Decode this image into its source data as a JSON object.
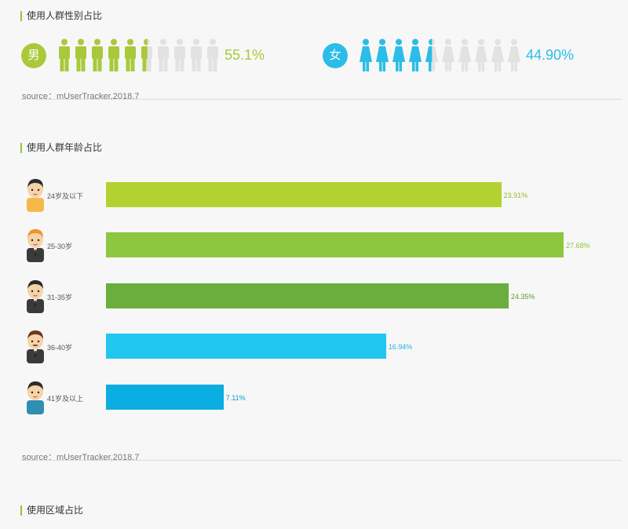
{
  "sections": {
    "gender_title": "使用人群性别占比",
    "age_title": "使用人群年龄占比",
    "region_title": "使用区域占比"
  },
  "source_text": "source：mUserTracker,2018.7",
  "chart_data": [
    {
      "type": "pictograph",
      "series": [
        {
          "name": "男",
          "value": 55.1,
          "label": "55.1%",
          "color": "#a9c93a",
          "icon": "male-figure-icon"
        },
        {
          "name": "女",
          "value": 44.9,
          "label": "44.90%",
          "color": "#2bbde8",
          "icon": "female-figure-icon"
        }
      ],
      "icons_per_row": 10,
      "empty_color": "#e2e2e2"
    },
    {
      "type": "bar",
      "orientation": "horizontal",
      "categories": [
        "24岁及以下",
        "25-30岁",
        "31-35岁",
        "36-40岁",
        "41岁及以上"
      ],
      "values": [
        23.91,
        27.68,
        24.35,
        16.94,
        7.11
      ],
      "labels": [
        "23.91%",
        "27.68%",
        "24.35%",
        "16.94%",
        "7.11%"
      ],
      "colors": [
        "#b3d232",
        "#8dc63f",
        "#6aaf3d",
        "#22c7f0",
        "#0aaee0"
      ],
      "label_colors": [
        "#9ab82c",
        "#8dc63f",
        "#5a9c30",
        "#22b4e0",
        "#0a9ed0"
      ],
      "avatar_icons": [
        "boy-avatar-icon",
        "young-man-avatar-icon",
        "man-suit-avatar-icon",
        "mustache-man-avatar-icon",
        "older-man-avatar-icon"
      ]
    }
  ]
}
